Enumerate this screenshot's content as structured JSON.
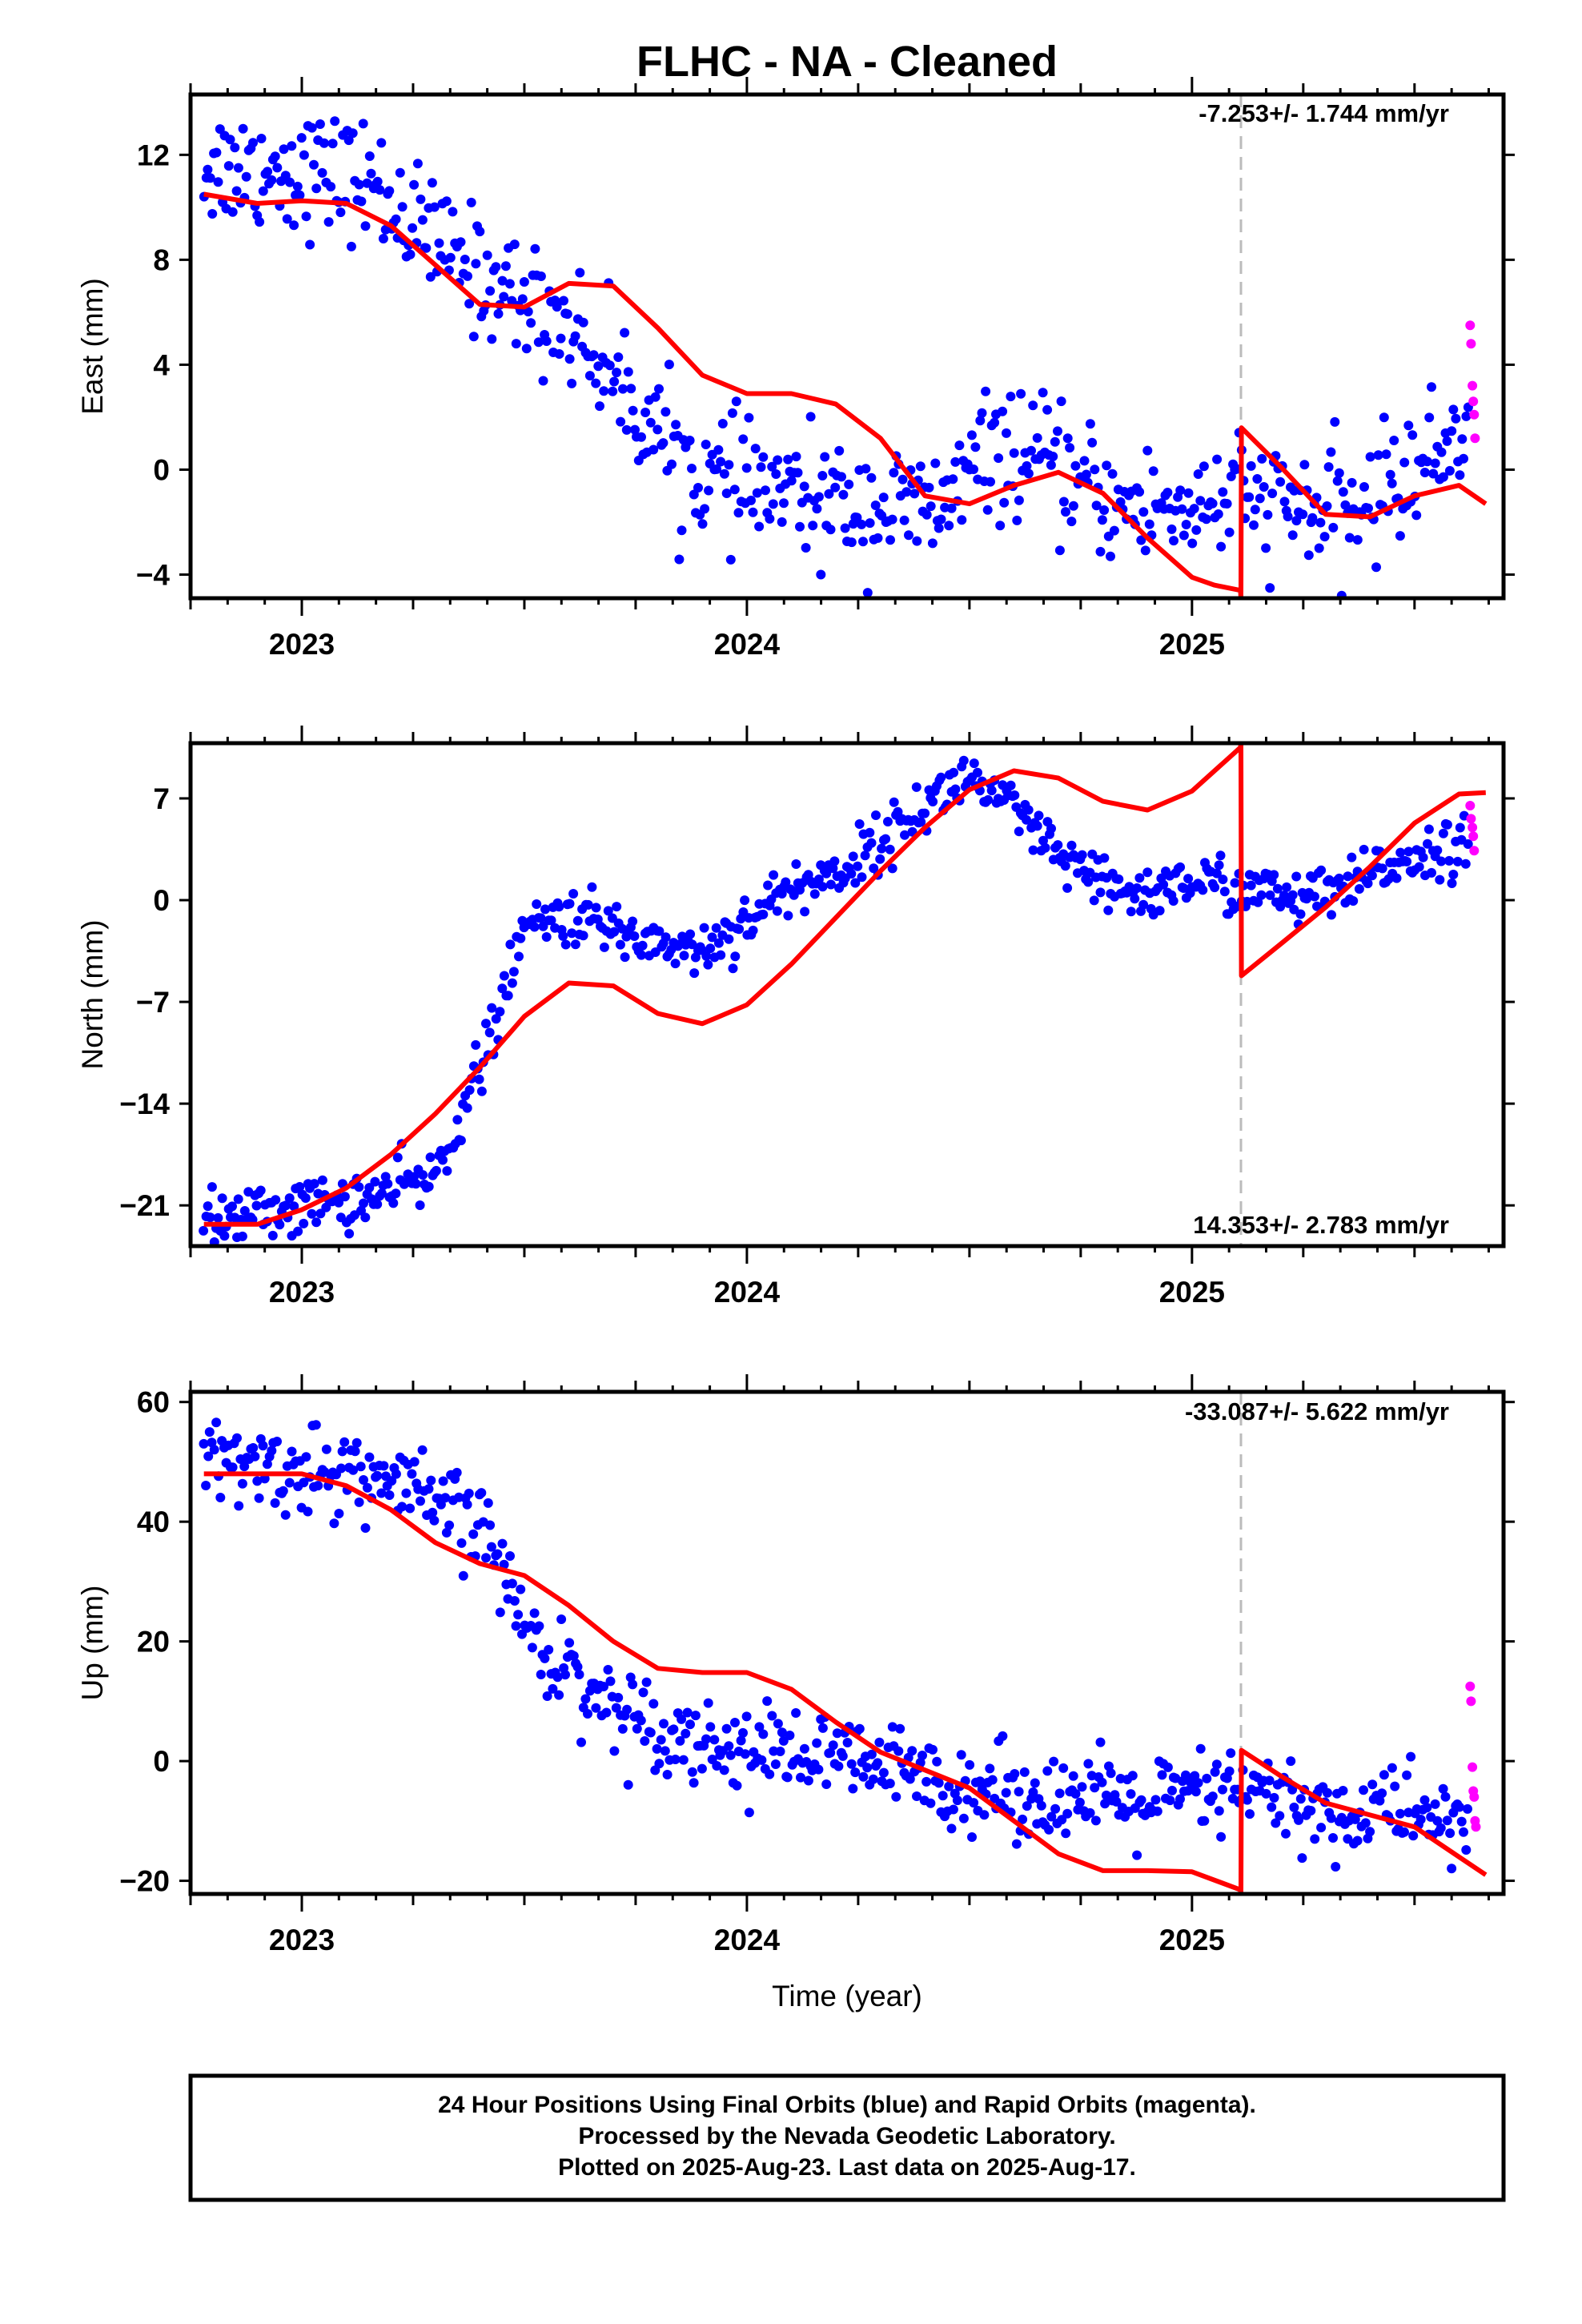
{
  "title": "FLHC  - NA - Cleaned",
  "colors": {
    "final_orbits": "#0000ff",
    "rapid_orbits": "#ff00ff",
    "model": "#ff0000",
    "event_line": "#bbbbbb",
    "frame": "#000000"
  },
  "chart_data": [
    {
      "type": "scatter",
      "ylabel": "East (mm)",
      "rate_label": "-7.253+/- 1.744 mm/yr",
      "xlim": [
        2022.75,
        2025.7
      ],
      "ylim": [
        -4.9,
        14.3
      ],
      "yticks": [
        -4,
        0,
        4,
        8,
        12
      ],
      "ytick_labels": [
        "−4",
        "0",
        "4",
        "8",
        "12"
      ],
      "xticks": [
        2023,
        2024,
        2025
      ],
      "xtick_labels": [
        "2023",
        "2024",
        "2025"
      ],
      "event_x": 2025.11,
      "final_trend": [
        [
          2022.78,
          11.6
        ],
        [
          2023.0,
          11.4
        ],
        [
          2023.15,
          11.0
        ],
        [
          2023.3,
          8.6
        ],
        [
          2023.45,
          6.9
        ],
        [
          2023.6,
          5.5
        ],
        [
          2023.7,
          3.6
        ],
        [
          2023.8,
          1.4
        ],
        [
          2023.9,
          -0.3
        ],
        [
          2024.0,
          -0.6
        ],
        [
          2024.15,
          -1.2
        ],
        [
          2024.3,
          -1.4
        ],
        [
          2024.42,
          -1.6
        ],
        [
          2024.55,
          0.7
        ],
        [
          2024.65,
          0.4
        ],
        [
          2024.75,
          -0.6
        ],
        [
          2024.85,
          -1.5
        ],
        [
          2025.0,
          -1.4
        ],
        [
          2025.11,
          -1.0
        ],
        [
          2025.25,
          -1.5
        ],
        [
          2025.35,
          -1.8
        ],
        [
          2025.45,
          -0.5
        ],
        [
          2025.55,
          0.5
        ],
        [
          2025.62,
          2.2
        ]
      ],
      "final_scatter": 1.15,
      "final_range": [
        2022.78,
        2025.62
      ],
      "final_count": 620,
      "rapid_points": [
        [
          2025.625,
          5.5
        ],
        [
          2025.627,
          4.8
        ],
        [
          2025.63,
          3.2
        ],
        [
          2025.632,
          2.6
        ],
        [
          2025.634,
          2.1
        ],
        [
          2025.636,
          1.2
        ]
      ],
      "model": [
        [
          2022.78,
          10.5
        ],
        [
          2022.9,
          10.15
        ],
        [
          2023.0,
          10.25
        ],
        [
          2023.1,
          10.15
        ],
        [
          2023.2,
          9.3
        ],
        [
          2023.3,
          7.8
        ],
        [
          2023.4,
          6.3
        ],
        [
          2023.5,
          6.2
        ],
        [
          2023.6,
          7.1
        ],
        [
          2023.7,
          7.0
        ],
        [
          2023.8,
          5.4
        ],
        [
          2023.9,
          3.6
        ],
        [
          2024.0,
          2.9
        ],
        [
          2024.1,
          2.9
        ],
        [
          2024.2,
          2.5
        ],
        [
          2024.3,
          1.2
        ],
        [
          2024.4,
          -1.0
        ],
        [
          2024.5,
          -1.3
        ],
        [
          2024.6,
          -0.6
        ],
        [
          2024.7,
          -0.1
        ],
        [
          2024.8,
          -0.9
        ],
        [
          2024.9,
          -2.6
        ],
        [
          2025.0,
          -4.1
        ],
        [
          2025.05,
          -4.4
        ],
        [
          2025.109,
          -4.6
        ],
        [
          2025.11,
          -4.9
        ],
        [
          2025.111,
          1.6
        ],
        [
          2025.2,
          0.1
        ],
        [
          2025.3,
          -1.7
        ],
        [
          2025.4,
          -1.8
        ],
        [
          2025.5,
          -1.0
        ],
        [
          2025.6,
          -0.6
        ],
        [
          2025.66,
          -1.3
        ]
      ]
    },
    {
      "type": "scatter",
      "ylabel": "North (mm)",
      "rate_label": "14.353+/- 2.783 mm/yr",
      "xlim": [
        2022.75,
        2025.7
      ],
      "ylim": [
        -23.8,
        10.8
      ],
      "yticks": [
        -21,
        -14,
        -7,
        0,
        7
      ],
      "ytick_labels": [
        "−21",
        "−14",
        "−7",
        "0",
        "7"
      ],
      "xticks": [
        2023,
        2024,
        2025
      ],
      "xtick_labels": [
        "2023",
        "2024",
        "2025"
      ],
      "event_x": 2025.11,
      "final_trend": [
        [
          2022.78,
          -22.2
        ],
        [
          2023.0,
          -21.0
        ],
        [
          2023.15,
          -20.5
        ],
        [
          2023.3,
          -19.0
        ],
        [
          2023.42,
          -10.0
        ],
        [
          2023.5,
          -2.0
        ],
        [
          2023.6,
          -1.0
        ],
        [
          2023.75,
          -2.5
        ],
        [
          2023.9,
          -3.5
        ],
        [
          2024.0,
          -1.3
        ],
        [
          2024.1,
          0.8
        ],
        [
          2024.2,
          1.8
        ],
        [
          2024.3,
          4.0
        ],
        [
          2024.4,
          6.5
        ],
        [
          2024.5,
          8.6
        ],
        [
          2024.6,
          6.0
        ],
        [
          2024.7,
          3.0
        ],
        [
          2024.8,
          0.8
        ],
        [
          2024.9,
          0.4
        ],
        [
          2025.0,
          1.4
        ],
        [
          2025.11,
          0.8
        ],
        [
          2025.25,
          0.0
        ],
        [
          2025.35,
          0.6
        ],
        [
          2025.45,
          2.6
        ],
        [
          2025.55,
          3.5
        ],
        [
          2025.62,
          3.8
        ]
      ],
      "final_scatter": 0.95,
      "final_range": [
        2022.78,
        2025.62
      ],
      "final_count": 620,
      "rapid_points": [
        [
          2025.625,
          6.5
        ],
        [
          2025.627,
          5.6
        ],
        [
          2025.63,
          5.0
        ],
        [
          2025.632,
          4.4
        ],
        [
          2025.634,
          3.4
        ]
      ],
      "model": [
        [
          2022.78,
          -22.3
        ],
        [
          2022.9,
          -22.3
        ],
        [
          2023.0,
          -21.3
        ],
        [
          2023.1,
          -19.8
        ],
        [
          2023.2,
          -17.5
        ],
        [
          2023.3,
          -14.7
        ],
        [
          2023.4,
          -11.5
        ],
        [
          2023.5,
          -8.0
        ],
        [
          2023.6,
          -5.7
        ],
        [
          2023.7,
          -5.9
        ],
        [
          2023.8,
          -7.8
        ],
        [
          2023.9,
          -8.5
        ],
        [
          2024.0,
          -7.2
        ],
        [
          2024.1,
          -4.4
        ],
        [
          2024.2,
          -1.2
        ],
        [
          2024.3,
          2.0
        ],
        [
          2024.4,
          5.0
        ],
        [
          2024.5,
          7.6
        ],
        [
          2024.6,
          8.9
        ],
        [
          2024.7,
          8.4
        ],
        [
          2024.8,
          6.8
        ],
        [
          2024.9,
          6.2
        ],
        [
          2025.0,
          7.5
        ],
        [
          2025.109,
          10.5
        ],
        [
          2025.11,
          10.8
        ],
        [
          2025.111,
          -5.2
        ],
        [
          2025.2,
          -3.0
        ],
        [
          2025.3,
          -0.5
        ],
        [
          2025.4,
          2.3
        ],
        [
          2025.5,
          5.3
        ],
        [
          2025.6,
          7.3
        ],
        [
          2025.66,
          7.4
        ]
      ]
    },
    {
      "type": "scatter",
      "ylabel": "Up (mm)",
      "rate_label": "-33.087+/- 5.622 mm/yr",
      "xlim": [
        2022.75,
        2025.7
      ],
      "ylim": [
        -22.2,
        61.7
      ],
      "yticks": [
        -20,
        0,
        20,
        40,
        60
      ],
      "ytick_labels": [
        "−20",
        "0",
        "20",
        "40",
        "60"
      ],
      "xticks": [
        2023,
        2024,
        2025
      ],
      "xtick_labels": [
        "2023",
        "2024",
        "2025"
      ],
      "event_x": 2025.11,
      "final_trend": [
        [
          2022.78,
          50.0
        ],
        [
          2023.0,
          48.5
        ],
        [
          2023.15,
          47.5
        ],
        [
          2023.3,
          43.0
        ],
        [
          2023.42,
          38.0
        ],
        [
          2023.5,
          22.0
        ],
        [
          2023.6,
          15.0
        ],
        [
          2023.7,
          9.0
        ],
        [
          2023.8,
          6.0
        ],
        [
          2023.9,
          3.0
        ],
        [
          2024.0,
          2.0
        ],
        [
          2024.15,
          1.0
        ],
        [
          2024.3,
          -1.0
        ],
        [
          2024.42,
          -3.0
        ],
        [
          2024.55,
          -5.0
        ],
        [
          2024.7,
          -6.0
        ],
        [
          2024.85,
          -7.0
        ],
        [
          2025.0,
          -6.0
        ],
        [
          2025.11,
          -5.0
        ],
        [
          2025.25,
          -7.5
        ],
        [
          2025.35,
          -10.0
        ],
        [
          2025.45,
          -7.0
        ],
        [
          2025.55,
          -10.0
        ],
        [
          2025.62,
          -11.0
        ]
      ],
      "final_scatter": 3.6,
      "final_range": [
        2022.78,
        2025.62
      ],
      "final_count": 620,
      "rapid_points": [
        [
          2025.625,
          12.5
        ],
        [
          2025.627,
          10.0
        ],
        [
          2025.63,
          -1.0
        ],
        [
          2025.632,
          -5.0
        ],
        [
          2025.634,
          -6.0
        ],
        [
          2025.636,
          -10.0
        ],
        [
          2025.638,
          -11.0
        ]
      ],
      "model": [
        [
          2022.78,
          48.0
        ],
        [
          2022.9,
          48.0
        ],
        [
          2023.0,
          48.0
        ],
        [
          2023.1,
          46.0
        ],
        [
          2023.2,
          42.0
        ],
        [
          2023.3,
          36.5
        ],
        [
          2023.4,
          33.0
        ],
        [
          2023.5,
          31.0
        ],
        [
          2023.6,
          26.0
        ],
        [
          2023.7,
          20.0
        ],
        [
          2023.8,
          15.5
        ],
        [
          2023.9,
          14.8
        ],
        [
          2024.0,
          14.8
        ],
        [
          2024.1,
          12.0
        ],
        [
          2024.2,
          6.5
        ],
        [
          2024.3,
          1.5
        ],
        [
          2024.4,
          -1.5
        ],
        [
          2024.5,
          -4.5
        ],
        [
          2024.6,
          -10.0
        ],
        [
          2024.7,
          -15.5
        ],
        [
          2024.8,
          -18.3
        ],
        [
          2024.9,
          -18.3
        ],
        [
          2025.0,
          -18.5
        ],
        [
          2025.109,
          -21.5
        ],
        [
          2025.11,
          -22.2
        ],
        [
          2025.111,
          1.8
        ],
        [
          2025.2,
          -2.5
        ],
        [
          2025.3,
          -7.0
        ],
        [
          2025.4,
          -9.0
        ],
        [
          2025.5,
          -11.0
        ],
        [
          2025.6,
          -16.0
        ],
        [
          2025.66,
          -19.0
        ]
      ]
    }
  ],
  "xlabel": "Time (year)",
  "footer": {
    "line1": "24 Hour Positions Using Final Orbits (blue) and Rapid Orbits (magenta).",
    "line2": "Processed by the Nevada Geodetic Laboratory.",
    "line3": "Plotted on 2025-Aug-23. Last data on 2025-Aug-17."
  }
}
